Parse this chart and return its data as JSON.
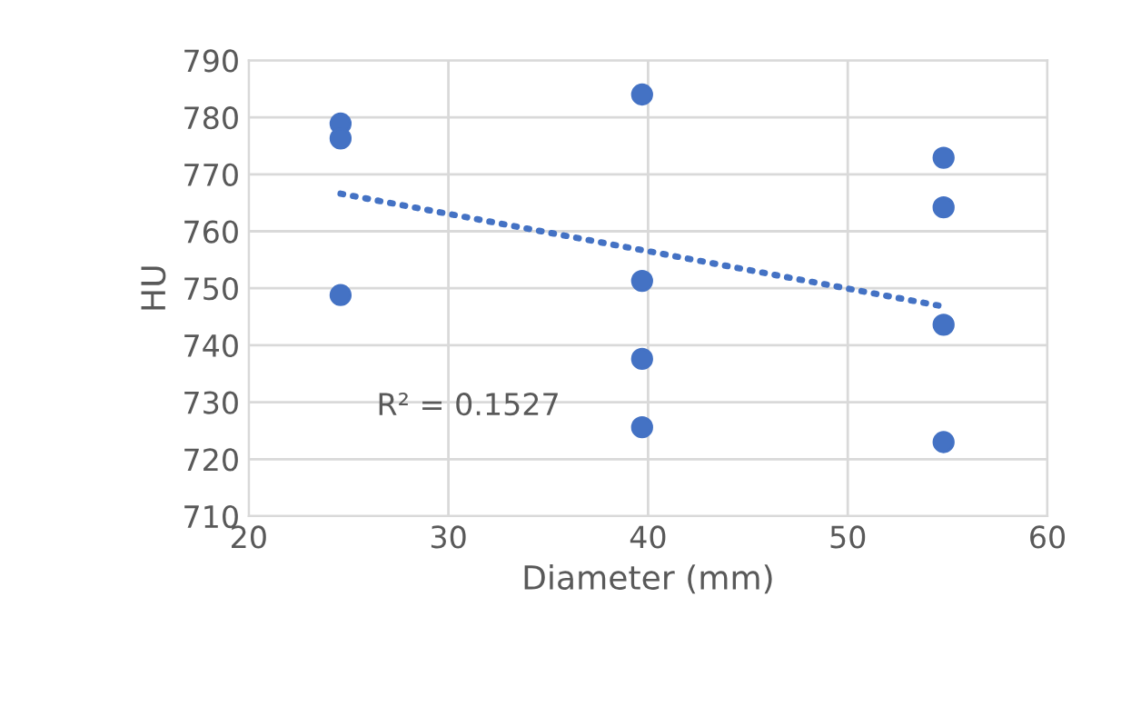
{
  "chart_data": {
    "type": "scatter",
    "xlabel": "Diameter (mm)",
    "ylabel": "HU",
    "series": [
      {
        "color": "#4472c4",
        "marker": "circle",
        "x": [
          24.6,
          24.6,
          24.6,
          39.7,
          39.7,
          39.7,
          39.7,
          54.8,
          54.8,
          54.8,
          54.8
        ],
        "values": [
          778.9,
          776.3,
          748.8,
          784.0,
          751.3,
          737.6,
          725.6,
          772.9,
          764.2,
          743.6,
          723.0
        ]
      },
      {
        "type": "line",
        "color": "#4472c4",
        "line_style": "dotted",
        "marker": "none",
        "x": [
          24.6,
          54.8
        ],
        "values": [
          766.6,
          746.8
        ]
      }
    ],
    "annotations": [
      "R² = 0.1527"
    ],
    "xlim": [
      20,
      60
    ],
    "xticks": [
      20,
      30,
      40,
      50,
      60
    ],
    "ylim": [
      710,
      790
    ],
    "yticks": [
      710,
      720,
      730,
      740,
      750,
      760,
      770,
      780,
      790
    ],
    "grid": true,
    "legend": false
  }
}
